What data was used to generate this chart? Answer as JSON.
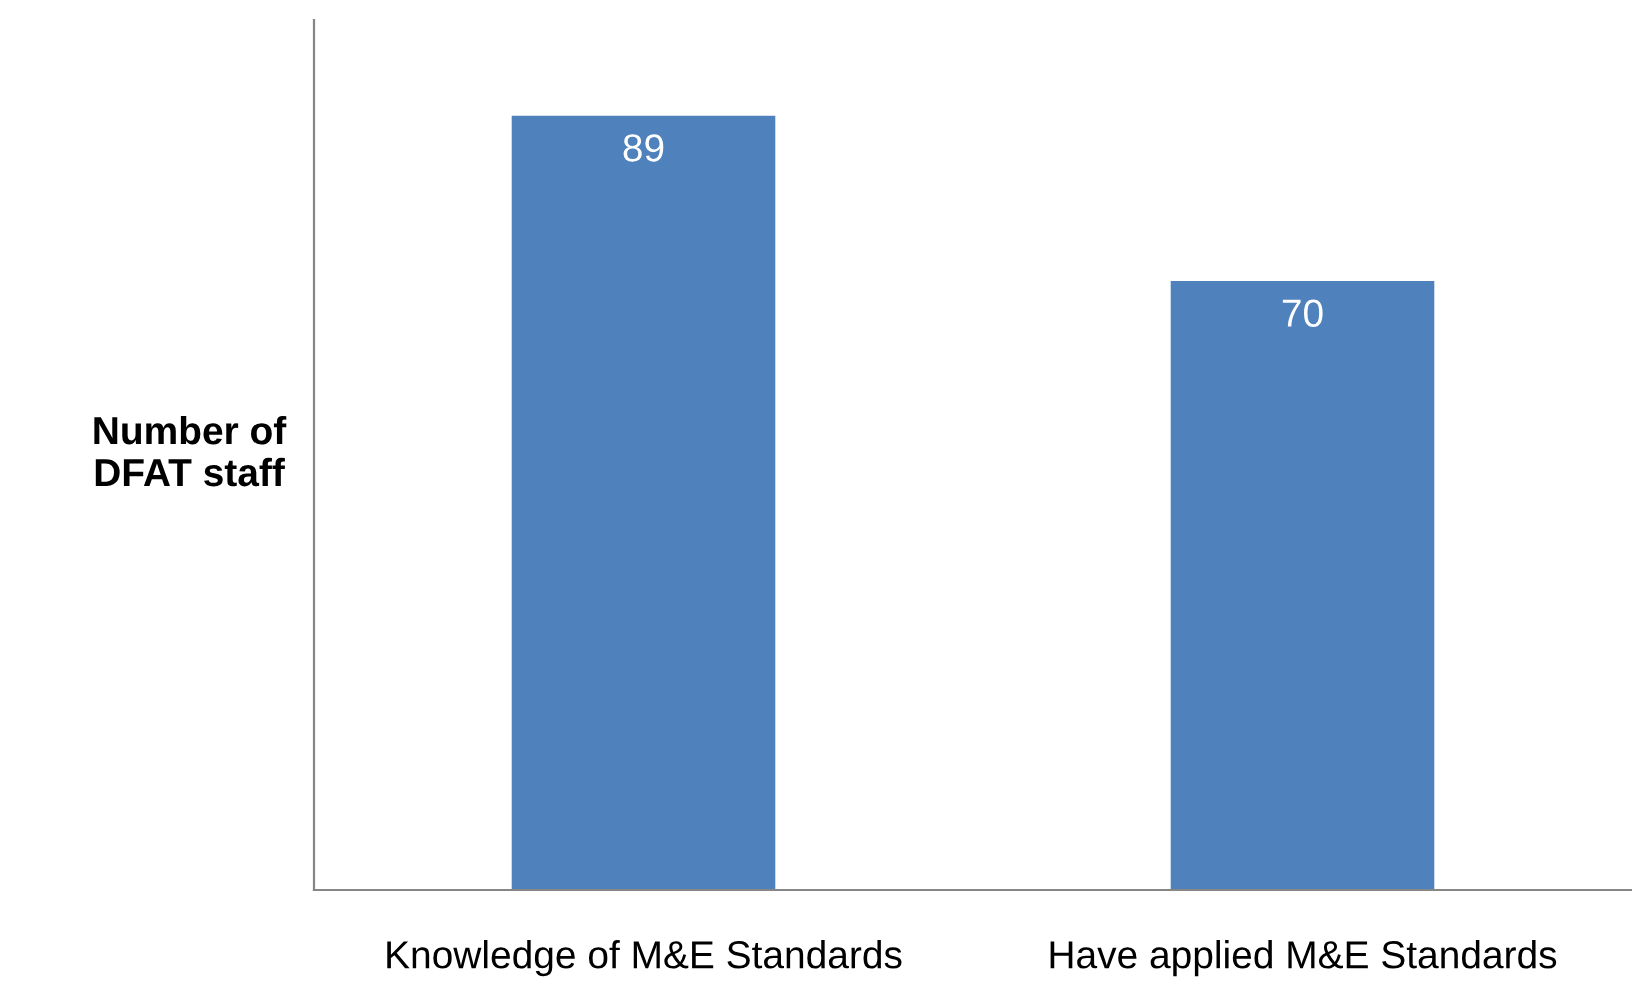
{
  "chart_data": {
    "type": "bar",
    "ylabel": "Number of\nDFAT staff",
    "categories": [
      "Knowledge of M&E Standards",
      "Have applied M&E Standards"
    ],
    "values": [
      89,
      70
    ],
    "color": "#4f81bd",
    "data_labels": true,
    "ylim": [
      0,
      100
    ],
    "tick_labels": "x",
    "grid": false,
    "legend": false
  }
}
